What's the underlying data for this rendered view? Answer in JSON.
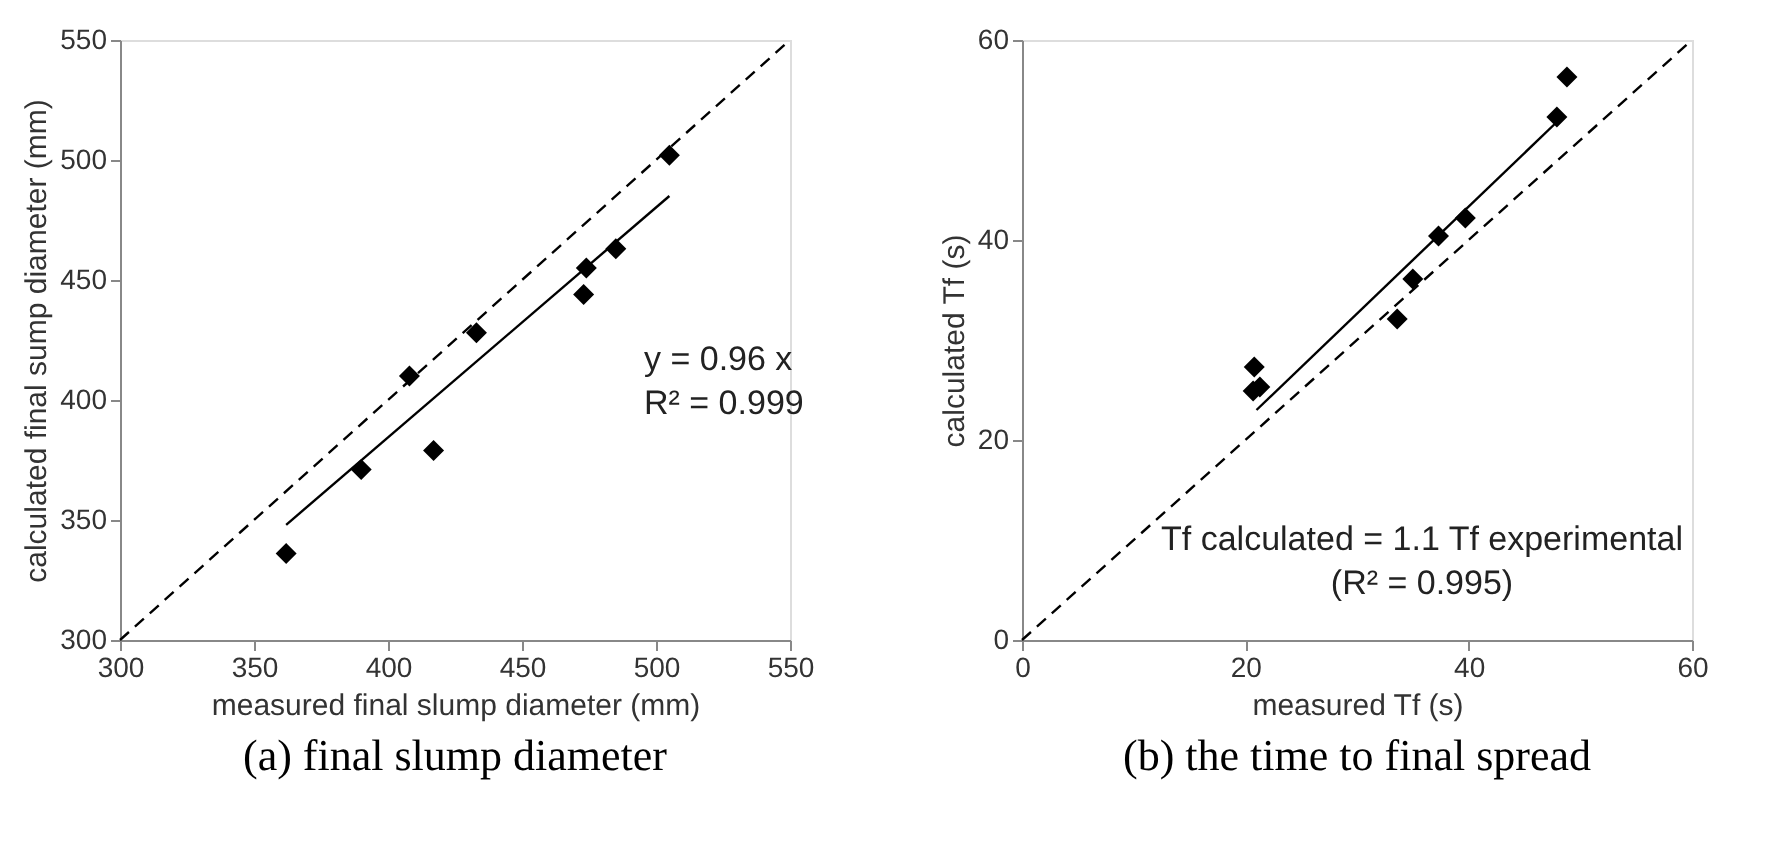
{
  "chart_data": [
    {
      "type": "scatter",
      "title": "(a) final slump diameter",
      "xlabel": "measured final slump diameter (mm)",
      "ylabel": "calculated final sump diameter (mm)",
      "xlim": [
        300,
        550
      ],
      "ylim": [
        300,
        550
      ],
      "xticks": [
        300,
        350,
        400,
        450,
        500,
        550
      ],
      "yticks": [
        300,
        350,
        400,
        450,
        500,
        550
      ],
      "grid": false,
      "marker": "diamond",
      "series": [
        {
          "type": "scatter",
          "color": "#000000",
          "x": [
            362,
            390,
            408,
            417,
            433,
            473,
            474,
            485,
            505
          ],
          "values": [
            336,
            371,
            410,
            379,
            428,
            444,
            455,
            463,
            502
          ]
        },
        {
          "type": "line",
          "color": "#000000",
          "line_style": "solid",
          "marker": "none",
          "x": [
            362,
            505
          ],
          "values": [
            348,
            485
          ]
        },
        {
          "type": "line",
          "color": "#000000",
          "line_style": "dashed",
          "marker": "none",
          "x": [
            300,
            550
          ],
          "values": [
            300,
            550
          ]
        }
      ],
      "annotations": [
        "y = 0.96 x",
        "R² = 0.999"
      ]
    },
    {
      "type": "scatter",
      "title": "(b) the time to final spread",
      "xlabel": "measured Tf (s)",
      "ylabel": "calculated Tf (s)",
      "xlim": [
        0,
        60
      ],
      "ylim": [
        0,
        60
      ],
      "xticks": [
        0,
        20,
        40,
        60
      ],
      "yticks": [
        0,
        20,
        40,
        60
      ],
      "grid": false,
      "marker": "diamond",
      "series": [
        {
          "type": "scatter",
          "color": "#000000",
          "x": [
            20.8,
            20.7,
            21.3,
            33.6,
            35.0,
            37.3,
            39.7,
            47.9,
            48.8
          ],
          "values": [
            27.3,
            24.9,
            25.3,
            32.1,
            36.1,
            40.4,
            42.2,
            52.3,
            56.3
          ]
        },
        {
          "type": "line",
          "color": "#000000",
          "line_style": "solid",
          "marker": "none",
          "x": [
            21,
            47.8
          ],
          "values": [
            23.0,
            51.7
          ]
        },
        {
          "type": "line",
          "color": "#000000",
          "line_style": "dashed",
          "marker": "none",
          "x": [
            0,
            60
          ],
          "values": [
            0,
            60
          ]
        }
      ],
      "annotations": [
        "Tf calculated = 1.1 Tf experimental",
        "(R² = 0.995)"
      ]
    }
  ]
}
